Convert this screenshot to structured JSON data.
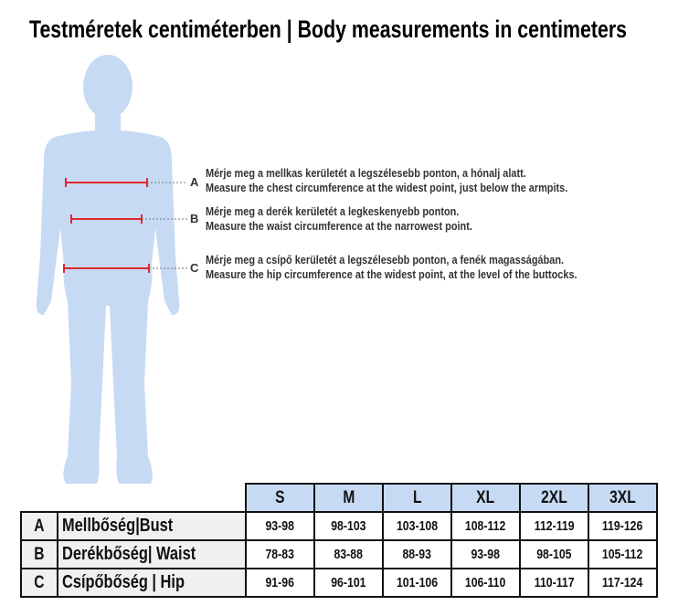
{
  "title": "Testméretek centiméterben | Body measurements in centimeters",
  "colors": {
    "silhouette": "#c6daf4",
    "marker": "#e0282e",
    "header": "#c6daf4"
  },
  "measurements": [
    {
      "letter": "A",
      "hu": "Mérje meg a mellkas kerületét a legszélesebb ponton, a hónalj alatt.",
      "en": "Measure the chest circumference at the widest point, just below the armpits."
    },
    {
      "letter": "B",
      "hu": "Mérje meg a derék kerületét a legkeskenyebb ponton.",
      "en": "Measure the waist circumference at the narrowest point."
    },
    {
      "letter": "C",
      "hu": "Mérje meg a csípő kerületét a legszélesebb ponton, a fenék magasságában.",
      "en": "Measure the hip circumference at the widest point, at the level of the buttocks."
    }
  ],
  "table": {
    "sizes": [
      "S",
      "M",
      "L",
      "XL",
      "2XL",
      "3XL"
    ],
    "rows": [
      {
        "letter": "A",
        "label": "Mellbőség|Bust",
        "values": [
          "93-98",
          "98-103",
          "103-108",
          "108-112",
          "112-119",
          "119-126"
        ]
      },
      {
        "letter": "B",
        "label": "Derékbőség| Waist",
        "values": [
          "78-83",
          "83-88",
          "88-93",
          "93-98",
          "98-105",
          "105-112"
        ]
      },
      {
        "letter": "C",
        "label": "Csípőbőség | Hip",
        "values": [
          "91-96",
          "96-101",
          "101-106",
          "106-110",
          "110-117",
          "117-124"
        ]
      }
    ]
  }
}
